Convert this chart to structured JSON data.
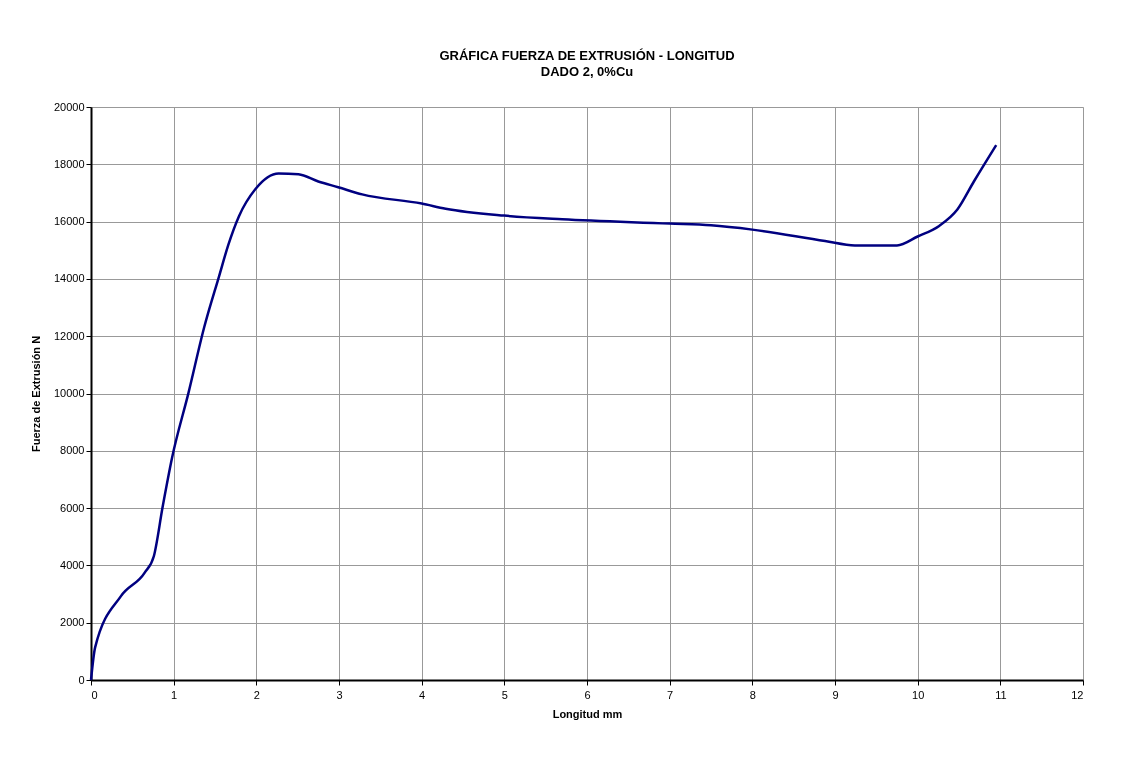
{
  "chart_data": {
    "type": "line",
    "title": "GRÁFICA FUERZA DE EXTRUSIÓN - LONGITUD",
    "subtitle": "DADO 2,   0%Cu",
    "xlabel": "Longitud mm",
    "ylabel": "Fuerza de Extrusión N",
    "xlim": [
      0,
      12
    ],
    "xticks": [
      0,
      1,
      2,
      3,
      4,
      5,
      6,
      7,
      8,
      9,
      10,
      11,
      12
    ],
    "ylim": [
      0,
      20000
    ],
    "yticks": [
      0,
      2000,
      4000,
      6000,
      8000,
      10000,
      12000,
      14000,
      16000,
      18000,
      20000
    ],
    "grid": true,
    "line_style": "solid",
    "series": [
      {
        "color": "#000080",
        "x": [
          0,
          0.05,
          0.36,
          0.65,
          0.76,
          0.87,
          0.98,
          1.18,
          1.37,
          1.55,
          1.66,
          1.79,
          1.99,
          2.27,
          2.51,
          2.75,
          2.99,
          3.28,
          4.0,
          4.29,
          5.0,
          5.7,
          7.0,
          7.5,
          8.0,
          8.88,
          9.24,
          9.75,
          10.0,
          10.26,
          10.48,
          10.68,
          10.95
        ],
        "values": [
          0,
          1140,
          2920,
          3750,
          4320,
          6100,
          7750,
          10030,
          12320,
          14100,
          15180,
          16190,
          17140,
          17680,
          17650,
          17400,
          17200,
          16950,
          16630,
          16450,
          16210,
          16080,
          15930,
          15870,
          15720,
          15320,
          15170,
          15170,
          15480,
          15850,
          16420,
          17400,
          18670
        ]
      }
    ]
  }
}
